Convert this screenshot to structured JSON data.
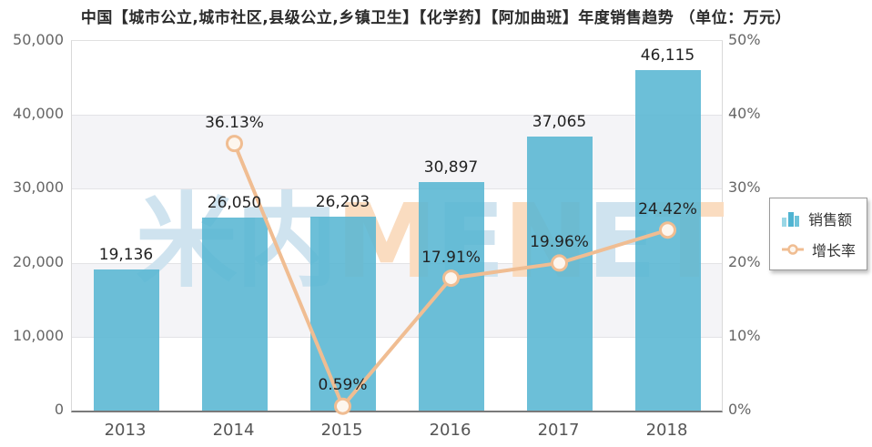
{
  "title": "中国【城市公立,城市社区,县级公立,乡镇卫生】【化学药】【阿加曲班】年度销售趋势 （单位：万元）",
  "watermark": {
    "text": "米内MENET",
    "char_colors": [
      "blue",
      "blue",
      "peach",
      "blue",
      "peach",
      "blue",
      "peach"
    ]
  },
  "legend": {
    "items": [
      {
        "label": "销售额",
        "type": "bar"
      },
      {
        "label": "增长率",
        "type": "line"
      }
    ]
  },
  "colors": {
    "bar": "#69c1d9",
    "line": "#f0bd92",
    "marker_fill": "#fdf6ee",
    "band_gray": "#f4f4f7",
    "gridline": "#e3e3e6",
    "watermark_blue": "#cfe3ef",
    "watermark_peach": "#fadcc0",
    "label_text": "#222222",
    "axis_text": "#666666"
  },
  "chart_data": {
    "type": "combo-bar-line",
    "title": "中国【城市公立,城市社区,县级公立,乡镇卫生】【化学药】【阿加曲班】年度销售趋势 （单位：万元）",
    "categories": [
      "2013",
      "2014",
      "2015",
      "2016",
      "2017",
      "2018"
    ],
    "series": [
      {
        "name": "销售额",
        "type": "bar",
        "axis": "left",
        "values": [
          19136,
          26050,
          26203,
          30897,
          37065,
          46115
        ],
        "labels": [
          "19,136",
          "26,050",
          "26,203",
          "30,897",
          "37,065",
          "46,115"
        ]
      },
      {
        "name": "增长率",
        "type": "line",
        "axis": "right",
        "values": [
          null,
          36.13,
          0.59,
          17.91,
          19.96,
          24.42
        ],
        "labels": [
          "",
          "36.13%",
          "0.59%",
          "17.91%",
          "19.96%",
          "24.42%"
        ]
      }
    ],
    "left_axis": {
      "min": 0,
      "max": 50000,
      "ticks": [
        "0",
        "10,000",
        "20,000",
        "30,000",
        "40,000",
        "50,000"
      ]
    },
    "right_axis": {
      "min": 0,
      "max": 50,
      "ticks": [
        "0%",
        "10%",
        "20%",
        "30%",
        "40%",
        "50%"
      ]
    },
    "grid": "horizontal gridlines with alternating gray bands",
    "legend_position": "right"
  }
}
